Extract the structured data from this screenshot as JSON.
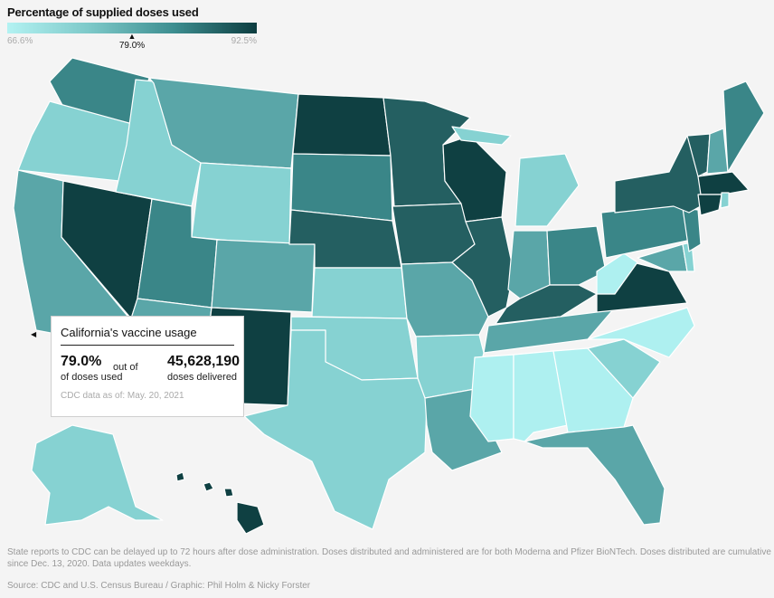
{
  "legend": {
    "title": "Percentage of supplied doses used",
    "min_label": "66.6%",
    "max_label": "92.5%",
    "marker_label": "79.0%",
    "marker_value": 79.0
  },
  "tooltip": {
    "title": "California's vaccine usage",
    "pct_value": "79.0%",
    "pct_label": "of doses used",
    "out_of": "out of",
    "doses_value": "45,628,190",
    "doses_label": "doses delivered",
    "as_of": "CDC data as of: May. 20, 2021"
  },
  "footnote": "State reports to CDC can be delayed up to 72 hours after dose administration. Doses distributed and administered are for both Moderna and Pfizer BioNTech. Doses distributed are cumulative since Dec. 13, 2020. Data updates weekdays.",
  "source": "Source: CDC and U.S. Census Bureau / Graphic: Phil Holm & Nicky Forster",
  "colors": {
    "very_light": "#aef0f0",
    "light": "#86d2d2",
    "mid": "#5aa6a8",
    "mid_dark": "#3a8688",
    "dark": "#245f61",
    "darkest": "#0f4042"
  }
}
